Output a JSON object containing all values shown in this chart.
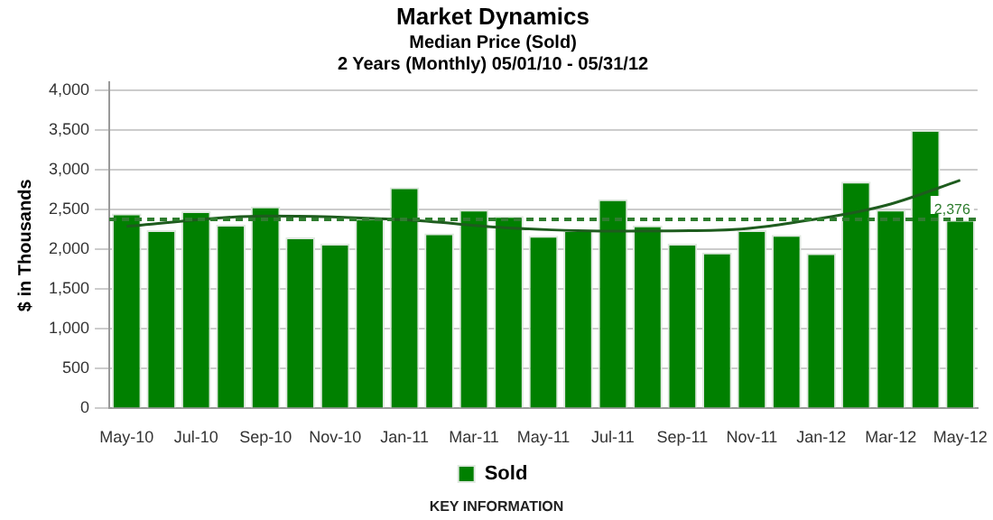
{
  "chart_data": {
    "type": "bar",
    "title": "Market Dynamics",
    "subtitle": "Median Price (Sold)\n2 Years (Monthly) 05/01/10 - 05/31/12",
    "ylabel": "$ in Thousands",
    "categories": [
      "May-10",
      null,
      "Jul-10",
      null,
      "Sep-10",
      null,
      "Nov-10",
      null,
      "Jan-11",
      null,
      "Mar-11",
      null,
      "May-11",
      null,
      "Jul-11",
      null,
      "Sep-11",
      null,
      "Nov-11",
      null,
      "Jan-12",
      null,
      "Mar-12",
      null,
      "May-12"
    ],
    "series": [
      {
        "name": "Sold",
        "color": "#008000",
        "values": [
          2450,
          2240,
          2480,
          2310,
          2540,
          2150,
          2070,
          2390,
          2780,
          2200,
          2500,
          2420,
          2170,
          2240,
          2630,
          2300,
          2070,
          1960,
          2240,
          2180,
          1950,
          2850,
          2500,
          3500,
          2370
        ]
      },
      {
        "type": "line",
        "color": "#1e5c1e",
        "values": [
          2290,
          null,
          null,
          null,
          2420,
          null,
          null,
          null,
          2370,
          null,
          null,
          2270,
          null,
          null,
          2230,
          null,
          null,
          2240,
          null,
          null,
          2390,
          null,
          2570,
          null,
          2870
        ]
      }
    ],
    "ylim": [
      0,
      4100
    ],
    "yticks": [
      {
        "value": 0,
        "label": "0"
      },
      {
        "value": 500,
        "label": "500"
      },
      {
        "value": 1000,
        "label": "1,000"
      },
      {
        "value": 1500,
        "label": "1,500"
      },
      {
        "value": 2000,
        "label": "2,000"
      },
      {
        "value": 2500,
        "label": "2,500"
      },
      {
        "value": 3000,
        "label": "3,000"
      },
      {
        "value": 3500,
        "label": "3,500"
      },
      {
        "value": 4000,
        "label": "4,000"
      }
    ],
    "ref_lines": [
      {
        "axis": "y",
        "value": 2376,
        "label": "2,376",
        "color": "#2e7d2e",
        "line_style": "dashed"
      }
    ],
    "grid": "y",
    "legend": "bottom",
    "annotations": [
      "KEY INFORMATION"
    ]
  }
}
